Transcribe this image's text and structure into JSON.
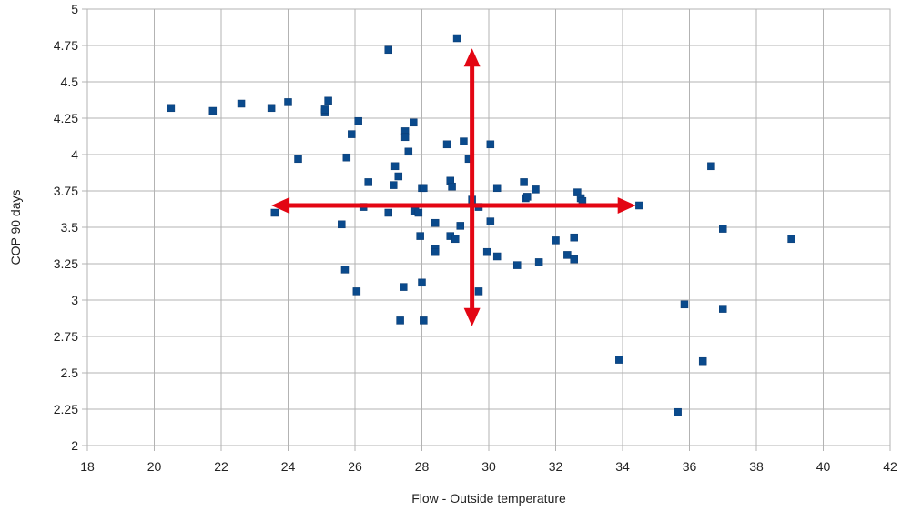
{
  "chart_data": {
    "type": "scatter",
    "title": "",
    "xlabel": "Flow - Outside temperature",
    "ylabel": "COP 90 days",
    "xlim": [
      18,
      42
    ],
    "ylim": [
      2,
      5
    ],
    "x_ticks": [
      "18",
      "20",
      "22",
      "24",
      "26",
      "28",
      "30",
      "32",
      "34",
      "36",
      "38",
      "40",
      "42"
    ],
    "y_ticks": [
      "2",
      "2.25",
      "2.5",
      "2.75",
      "3",
      "3.25",
      "3.5",
      "3.75",
      "4",
      "4.25",
      "4.5",
      "4.75",
      "5"
    ],
    "grid": true,
    "legend": "none",
    "point_color": "#0a4a8c",
    "series": [
      {
        "points": [
          [
            20.5,
            4.32
          ],
          [
            21.75,
            4.3
          ],
          [
            22.6,
            4.35
          ],
          [
            23.5,
            4.32
          ],
          [
            24.0,
            4.36
          ],
          [
            23.6,
            3.6
          ],
          [
            24.3,
            3.97
          ],
          [
            25.1,
            4.29
          ],
          [
            25.1,
            4.31
          ],
          [
            25.2,
            4.37
          ],
          [
            25.6,
            3.52
          ],
          [
            25.7,
            3.21
          ],
          [
            25.75,
            3.98
          ],
          [
            25.9,
            4.14
          ],
          [
            26.1,
            4.23
          ],
          [
            26.05,
            3.06
          ],
          [
            26.25,
            3.64
          ],
          [
            26.4,
            3.81
          ],
          [
            27.0,
            4.72
          ],
          [
            27.0,
            3.6
          ],
          [
            27.15,
            3.79
          ],
          [
            27.2,
            3.92
          ],
          [
            27.3,
            3.85
          ],
          [
            27.35,
            2.86
          ],
          [
            27.45,
            3.09
          ],
          [
            27.5,
            4.16
          ],
          [
            27.5,
            4.12
          ],
          [
            27.6,
            4.02
          ],
          [
            27.75,
            4.22
          ],
          [
            27.8,
            3.61
          ],
          [
            27.9,
            3.6
          ],
          [
            27.95,
            3.44
          ],
          [
            28.0,
            3.12
          ],
          [
            28.0,
            3.77
          ],
          [
            28.05,
            3.77
          ],
          [
            28.05,
            2.86
          ],
          [
            28.4,
            3.53
          ],
          [
            28.4,
            3.35
          ],
          [
            28.4,
            3.33
          ],
          [
            28.75,
            4.07
          ],
          [
            28.85,
            3.82
          ],
          [
            28.9,
            3.78
          ],
          [
            28.85,
            3.44
          ],
          [
            29.0,
            3.42
          ],
          [
            29.05,
            4.8
          ],
          [
            29.15,
            3.51
          ],
          [
            29.25,
            4.09
          ],
          [
            29.4,
            3.97
          ],
          [
            29.5,
            3.69
          ],
          [
            29.7,
            3.06
          ],
          [
            29.7,
            3.64
          ],
          [
            29.95,
            3.33
          ],
          [
            30.05,
            4.07
          ],
          [
            30.05,
            3.54
          ],
          [
            30.25,
            3.3
          ],
          [
            30.25,
            3.77
          ],
          [
            30.85,
            3.24
          ],
          [
            31.05,
            3.81
          ],
          [
            31.1,
            3.7
          ],
          [
            31.15,
            3.71
          ],
          [
            31.4,
            3.76
          ],
          [
            31.5,
            3.26
          ],
          [
            32.0,
            3.41
          ],
          [
            32.35,
            3.31
          ],
          [
            32.55,
            3.28
          ],
          [
            32.55,
            3.43
          ],
          [
            32.65,
            3.74
          ],
          [
            32.75,
            3.7
          ],
          [
            32.8,
            3.68
          ],
          [
            33.9,
            2.59
          ],
          [
            34.5,
            3.65
          ],
          [
            35.65,
            2.23
          ],
          [
            35.85,
            2.97
          ],
          [
            36.4,
            2.58
          ],
          [
            36.65,
            3.92
          ],
          [
            37.0,
            2.94
          ],
          [
            37.0,
            3.49
          ],
          [
            39.05,
            3.42
          ]
        ]
      }
    ],
    "annotations": {
      "arrow_color": "#e30613",
      "arrows": [
        {
          "direction": "both",
          "orientation": "horizontal",
          "from": [
            23.5,
            3.65
          ],
          "to": [
            34.4,
            3.65
          ]
        },
        {
          "direction": "both",
          "orientation": "vertical",
          "from": [
            29.5,
            2.82
          ],
          "to": [
            29.5,
            4.73
          ]
        }
      ]
    }
  }
}
